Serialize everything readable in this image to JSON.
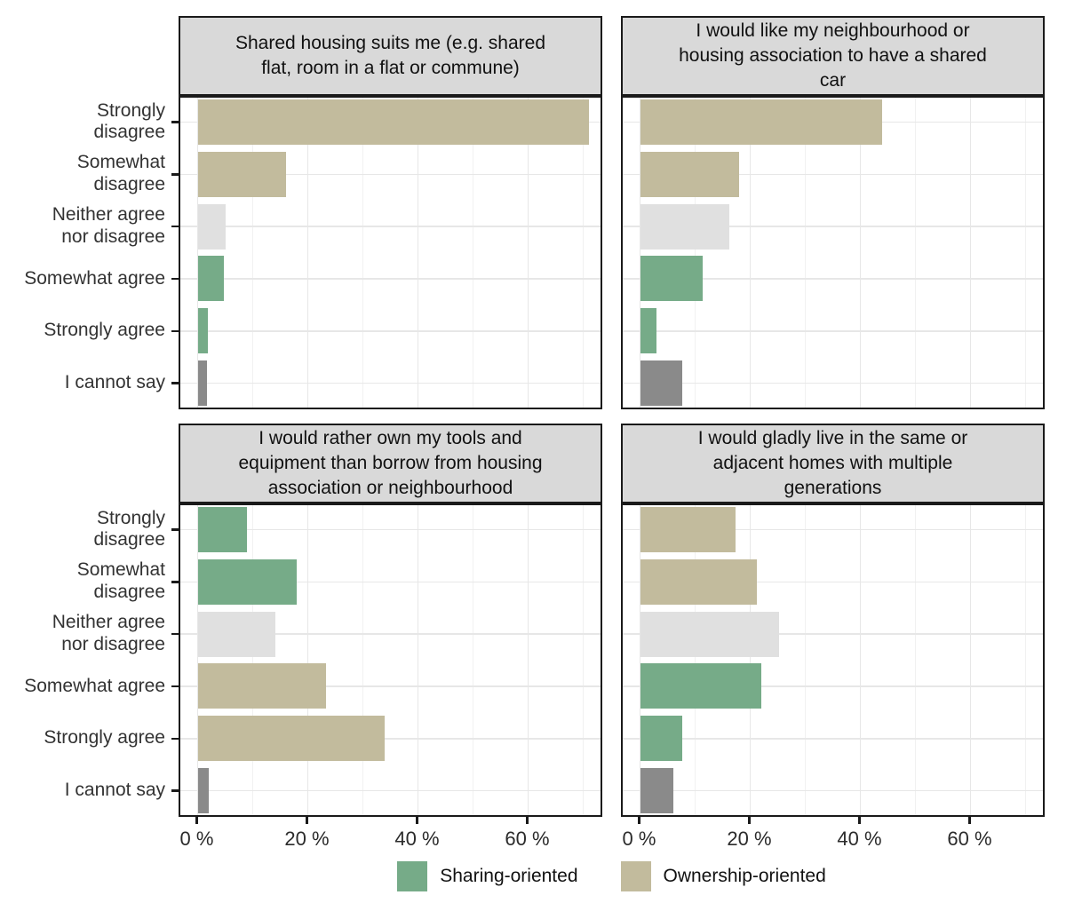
{
  "chart_data": {
    "type": "bar",
    "orientation": "horizontal",
    "title": "",
    "categories": [
      "Strongly disagree",
      "Somewhat disagree",
      "Neither agree nor disagree",
      "Somewhat agree",
      "Strongly agree",
      "I cannot say"
    ],
    "category_display_labels": [
      "Strongly\ndisagree",
      "Somewhat\ndisagree",
      "Neither agree\nnor disagree",
      "Somewhat agree",
      "Strongly agree",
      "I cannot say"
    ],
    "x_axis": {
      "unit": "%",
      "ticks": [
        0,
        20,
        40,
        60
      ],
      "tick_labels": [
        "0 %",
        "20 %",
        "40 %",
        "60 %"
      ],
      "minor_ticks": [
        10,
        30,
        50,
        70
      ],
      "range": [
        0,
        74
      ],
      "grid": "on"
    },
    "panels": [
      {
        "title": "Shared housing suits me (e.g. shared flat, room in a flat or commune)",
        "values": [
          71,
          16,
          5,
          4.7,
          1.8,
          1.7
        ],
        "groups": [
          "ownership",
          "ownership",
          "neutral",
          "sharing",
          "sharing",
          "cannot_say"
        ]
      },
      {
        "title": "I would like my neighbourhood or housing association to have a shared car",
        "values": [
          44,
          18,
          16.2,
          11.3,
          3,
          7.6
        ],
        "groups": [
          "ownership",
          "ownership",
          "neutral",
          "sharing",
          "sharing",
          "cannot_say"
        ]
      },
      {
        "title": "I would rather own my tools and equipment than borrow from housing association or neighbourhood",
        "values": [
          9,
          18,
          14.1,
          23.3,
          34,
          2
        ],
        "groups": [
          "sharing",
          "sharing",
          "neutral",
          "ownership",
          "ownership",
          "cannot_say"
        ]
      },
      {
        "title": "I would gladly live in the same or adjacent homes with multiple generations",
        "values": [
          17.3,
          21.2,
          25.3,
          22,
          7.6,
          6
        ],
        "groups": [
          "ownership",
          "ownership",
          "neutral",
          "sharing",
          "sharing",
          "cannot_say"
        ]
      }
    ],
    "legend": {
      "position": "bottom",
      "items": [
        {
          "label": "Sharing-oriented",
          "color_key": "sharing"
        },
        {
          "label": "Ownership-oriented",
          "color_key": "ownership"
        }
      ]
    }
  },
  "colors": {
    "sharing": "#76ab88",
    "ownership": "#c2bb9d",
    "neutral": "#e0e0e0",
    "cannot_say": "#8a8a8a",
    "strip_background": "#d9d9d9",
    "panel_border": "#1a1a1a",
    "grid_major": "#e7e7e7",
    "grid_minor": "#f1f1f1",
    "axis_text": "#333333"
  }
}
